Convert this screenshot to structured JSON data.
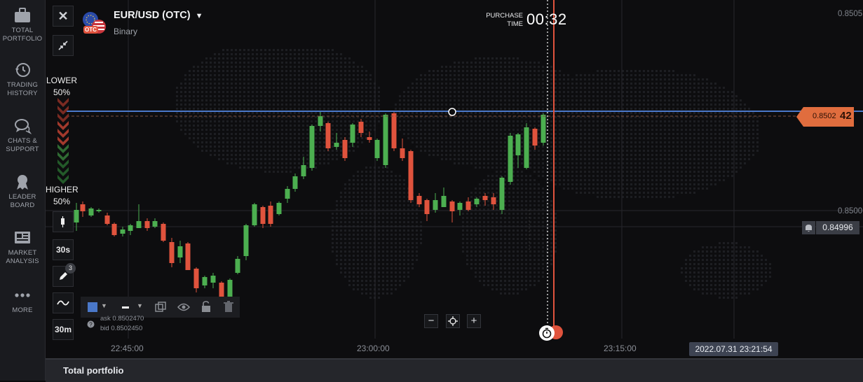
{
  "nav": {
    "items": [
      {
        "label1": "TOTAL",
        "label2": "PORTFOLIO",
        "icon": "briefcase-icon"
      },
      {
        "label1": "TRADING",
        "label2": "HISTORY",
        "icon": "history-icon"
      },
      {
        "label1": "CHATS &",
        "label2": "SUPPORT",
        "icon": "chat-icon"
      },
      {
        "label1": "LEADER",
        "label2": "BOARD",
        "icon": "award-icon"
      },
      {
        "label1": "MARKET",
        "label2": "ANALYSIS",
        "icon": "newspaper-icon"
      },
      {
        "label1": "MORE",
        "label2": "",
        "icon": "more-icon"
      }
    ]
  },
  "asset": {
    "name": "EUR/USD (OTC)",
    "type": "Binary",
    "badge": "OTC"
  },
  "purchase": {
    "label1": "PURCHASE",
    "label2": "TIME",
    "time": "00:32"
  },
  "sentiment": {
    "lower_label": "LOWER",
    "lower_pct": "50%",
    "higher_label": "HIGHER",
    "higher_pct": "50%"
  },
  "tools": {
    "period": "30s",
    "timeframe": "30m",
    "draw_badge": "3"
  },
  "quote": {
    "ask": "ask 0.8502470",
    "bid": "bid 0.8502450"
  },
  "price_tag": {
    "prefix": "0.8502",
    "suffix": "42"
  },
  "bid_line": {
    "value": "0.84996"
  },
  "y_axis": [
    "0.8505",
    "0.8500"
  ],
  "x_axis": [
    "22:45:00",
    "23:00:00",
    "23:15:00"
  ],
  "datetime": "2022.07.31 23:21:54",
  "bottom": {
    "title": "Total portfolio"
  },
  "colors": {
    "up": "#4caf50",
    "down": "#e0533d",
    "accent": "#e06d3e",
    "line": "#4a78c9"
  }
}
